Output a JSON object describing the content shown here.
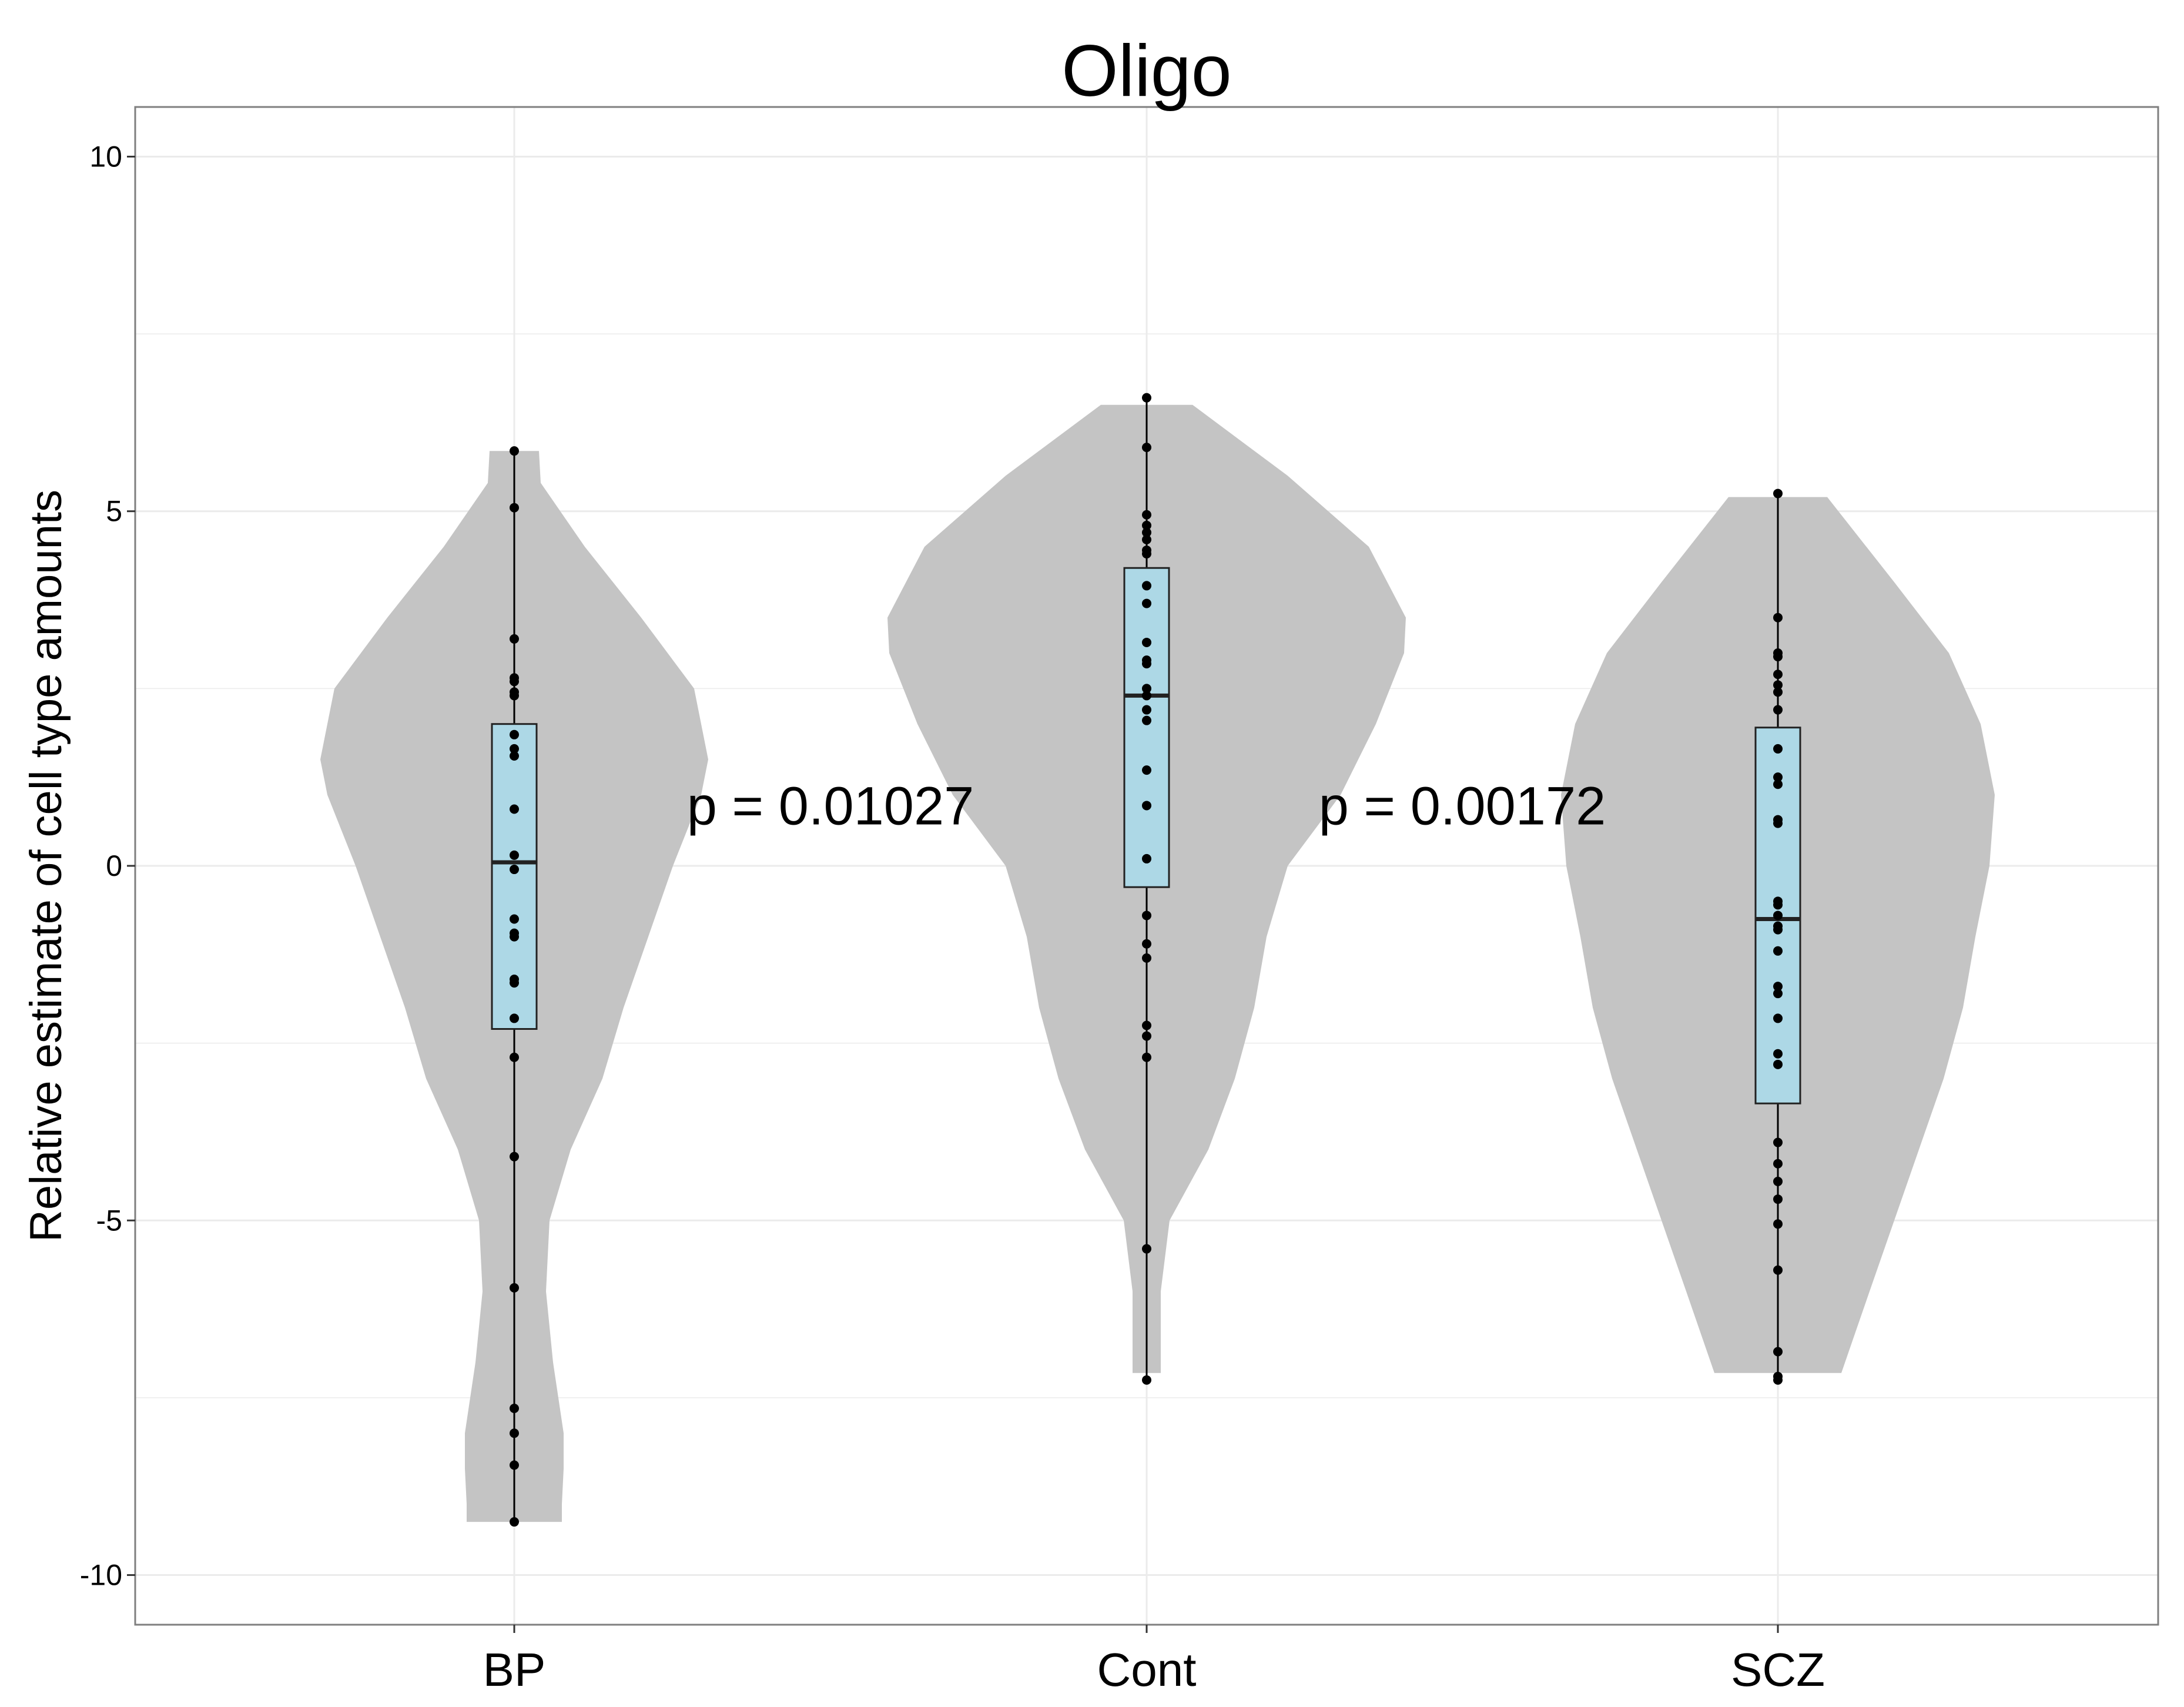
{
  "chart_data": {
    "type": "violin",
    "title": "Oligo",
    "xlabel": "",
    "ylabel": "Relative estimate of cell type amounts",
    "ylim": [
      -10.7,
      10.7
    ],
    "yticks": [
      -10,
      -5,
      0,
      5,
      10
    ],
    "ytick_labels": [
      "-10",
      "-5",
      "0",
      "5",
      "10"
    ],
    "categories": [
      "BP",
      "Cont",
      "SCZ"
    ],
    "grid": true,
    "legend": "none",
    "colors": {
      "violin": "#c4c4c4",
      "box": "#add8e6",
      "points": "#000000",
      "grid": "#ebebeb",
      "panel_border": "#7f7f7f"
    },
    "groups": [
      {
        "name": "BP",
        "box": {
          "min": -9.25,
          "q1": -2.3,
          "median": 0.05,
          "q3": 2.0,
          "max": 5.85
        },
        "violin_width": [
          [
            -9.25,
            0.27
          ],
          [
            -9.0,
            0.27
          ],
          [
            -8.5,
            0.28
          ],
          [
            -8.0,
            0.28
          ],
          [
            -7.0,
            0.22
          ],
          [
            -6.0,
            0.18
          ],
          [
            -5.0,
            0.2
          ],
          [
            -4.0,
            0.32
          ],
          [
            -3.0,
            0.5
          ],
          [
            -2.0,
            0.62
          ],
          [
            -1.0,
            0.76
          ],
          [
            0.0,
            0.9
          ],
          [
            1.0,
            1.06
          ],
          [
            1.5,
            1.1
          ],
          [
            2.5,
            1.02
          ],
          [
            3.5,
            0.72
          ],
          [
            4.5,
            0.4
          ],
          [
            5.4,
            0.15
          ],
          [
            5.85,
            0.14
          ]
        ],
        "points": [
          5.85,
          5.05,
          3.2,
          2.65,
          2.6,
          2.45,
          2.4,
          1.85,
          1.65,
          1.55,
          0.8,
          0.15,
          -0.05,
          -0.75,
          -0.95,
          -1.0,
          -1.6,
          -1.65,
          -2.15,
          -2.7,
          -4.1,
          -5.95,
          -7.65,
          -8.0,
          -8.45,
          -9.25
        ]
      },
      {
        "name": "Cont",
        "box": {
          "min": -7.25,
          "q1": -0.3,
          "median": 2.4,
          "q3": 4.2,
          "max": 6.6
        },
        "violin_width": [
          [
            -7.15,
            0.08
          ],
          [
            -6.0,
            0.08
          ],
          [
            -5.0,
            0.13
          ],
          [
            -4.0,
            0.35
          ],
          [
            -3.0,
            0.5
          ],
          [
            -2.0,
            0.61
          ],
          [
            -1.0,
            0.68
          ],
          [
            0.0,
            0.8
          ],
          [
            1.0,
            1.1
          ],
          [
            2.0,
            1.3
          ],
          [
            3.0,
            1.46
          ],
          [
            3.5,
            1.47
          ],
          [
            4.5,
            1.26
          ],
          [
            5.5,
            0.8
          ],
          [
            6.5,
            0.26
          ]
        ],
        "points": [
          6.6,
          5.9,
          4.95,
          4.8,
          4.7,
          4.6,
          4.45,
          4.4,
          3.95,
          3.7,
          3.15,
          2.9,
          2.85,
          2.5,
          2.4,
          2.2,
          2.05,
          1.35,
          0.85,
          0.1,
          -0.7,
          -1.1,
          -1.3,
          -2.25,
          -2.4,
          -2.7,
          -5.4,
          -7.25
        ]
      },
      {
        "name": "SCZ",
        "box": {
          "min": -7.25,
          "q1": -3.35,
          "median": -0.75,
          "q3": 1.95,
          "max": 5.25
        },
        "violin_width": [
          [
            -7.15,
            0.36
          ],
          [
            -6.0,
            0.52
          ],
          [
            -5.0,
            0.66
          ],
          [
            -4.0,
            0.8
          ],
          [
            -3.0,
            0.94
          ],
          [
            -2.0,
            1.05
          ],
          [
            -1.0,
            1.12
          ],
          [
            0.0,
            1.2
          ],
          [
            1.0,
            1.23
          ],
          [
            2.0,
            1.15
          ],
          [
            3.0,
            0.97
          ],
          [
            4.0,
            0.66
          ],
          [
            5.2,
            0.28
          ]
        ],
        "points": [
          5.25,
          3.5,
          3.0,
          2.95,
          2.7,
          2.55,
          2.45,
          2.2,
          1.65,
          1.25,
          1.15,
          0.65,
          0.6,
          -0.5,
          -0.55,
          -0.7,
          -0.85,
          -0.9,
          -1.2,
          -1.7,
          -1.8,
          -2.15,
          -2.65,
          -2.8,
          -3.9,
          -4.2,
          -4.45,
          -4.7,
          -5.05,
          -5.7,
          -6.85,
          -7.2,
          -7.25
        ]
      }
    ],
    "annotations": [
      {
        "text": "p = 0.01027",
        "x_between": [
          "BP",
          "Cont"
        ],
        "y": 0.85
      },
      {
        "text": "p = 0.00172",
        "x_between": [
          "Cont",
          "SCZ"
        ],
        "y": 0.85
      }
    ]
  }
}
